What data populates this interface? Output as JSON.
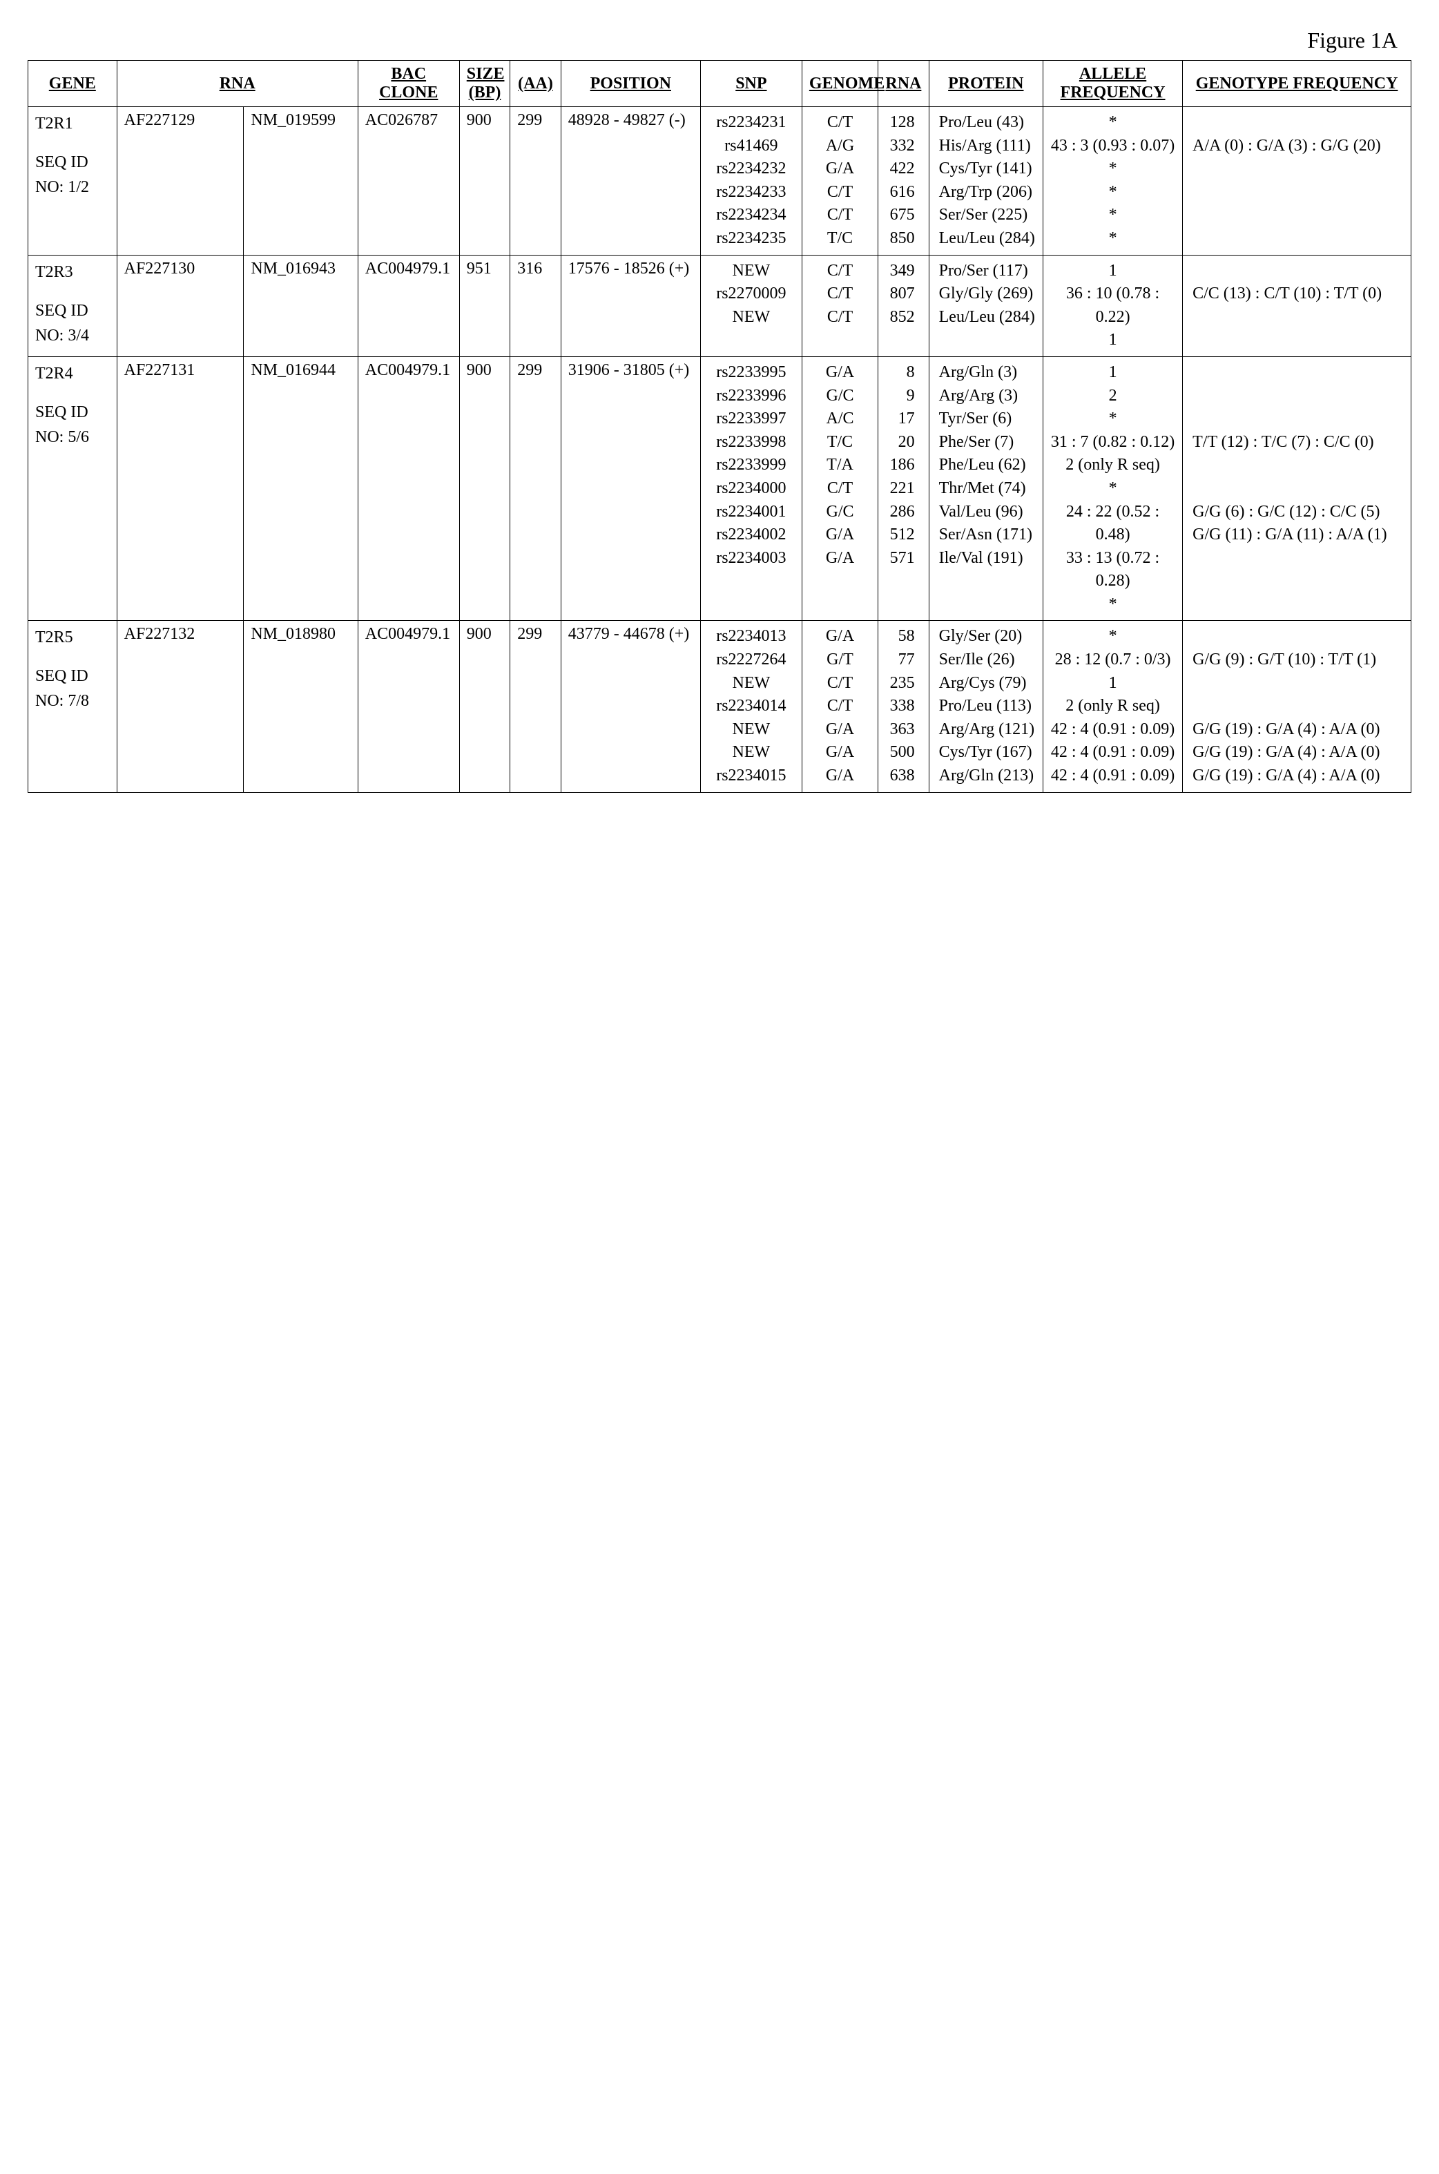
{
  "figure_label": "Figure 1A",
  "headers": {
    "gene": "GENE",
    "rna": "RNA",
    "bac_clone": "BAC CLONE",
    "size_bp": "SIZE (BP)",
    "aa": "(AA)",
    "position": "POSITION",
    "snp": "SNP",
    "genome": "GENOME",
    "rna_num": "RNA",
    "protein": "PROTEIN",
    "allele_freq": "ALLELE FREQUENCY",
    "genotype_freq": "GENOTYPE FREQUENCY"
  },
  "rows": [
    {
      "gene": "T2R1",
      "seq_id": "SEQ ID NO: 1/2",
      "rna1": "AF227129",
      "rna2": "NM_019599",
      "bac": "AC026787",
      "size_bp": "900",
      "aa": "299",
      "position": "48928 - 49827 (-)",
      "snps": [
        {
          "snp": "rs2234231",
          "genome": "C/T",
          "rna": "128",
          "protein": "Pro/Leu (43)",
          "allele": "*",
          "genotype": ""
        },
        {
          "snp": "rs41469",
          "genome": "A/G",
          "rna": "332",
          "protein": "His/Arg (111)",
          "allele": "43 : 3 (0.93 : 0.07)",
          "genotype": "A/A (0) : G/A (3) : G/G (20)"
        },
        {
          "snp": "rs2234232",
          "genome": "G/A",
          "rna": "422",
          "protein": "Cys/Tyr (141)",
          "allele": "*",
          "genotype": ""
        },
        {
          "snp": "rs2234233",
          "genome": "C/T",
          "rna": "616",
          "protein": "Arg/Trp (206)",
          "allele": "*",
          "genotype": ""
        },
        {
          "snp": "rs2234234",
          "genome": "C/T",
          "rna": "675",
          "protein": "Ser/Ser (225)",
          "allele": "*",
          "genotype": ""
        },
        {
          "snp": "rs2234235",
          "genome": "T/C",
          "rna": "850",
          "protein": "Leu/Leu (284)",
          "allele": "*",
          "genotype": ""
        }
      ]
    },
    {
      "gene": "T2R3",
      "seq_id": "SEQ ID NO: 3/4",
      "rna1": "AF227130",
      "rna2": "NM_016943",
      "bac": "AC004979.1",
      "size_bp": "951",
      "aa": "316",
      "position": "17576 - 18526 (+)",
      "snps": [
        {
          "snp": "NEW",
          "genome": "C/T",
          "rna": "349",
          "protein": "Pro/Ser (117)",
          "allele": "1",
          "genotype": ""
        },
        {
          "snp": "rs2270009",
          "genome": "C/T",
          "rna": "807",
          "protein": "Gly/Gly (269)",
          "allele": "36 : 10 (0.78 : 0.22)",
          "genotype": "C/C (13) : C/T (10) : T/T (0)"
        },
        {
          "snp": "NEW",
          "genome": "C/T",
          "rna": "852",
          "protein": "Leu/Leu (284)",
          "allele": "1",
          "genotype": ""
        }
      ]
    },
    {
      "gene": "T2R4",
      "seq_id": "SEQ ID NO: 5/6",
      "rna1": "AF227131",
      "rna2": "NM_016944",
      "bac": "AC004979.1",
      "size_bp": "900",
      "aa": "299",
      "position": "31906 - 31805 (+)",
      "snps": [
        {
          "snp": "rs2233995",
          "genome": "G/A",
          "rna": "8",
          "protein": "Arg/Gln (3)",
          "allele": "1",
          "genotype": ""
        },
        {
          "snp": "rs2233996",
          "genome": "G/C",
          "rna": "9",
          "protein": "Arg/Arg (3)",
          "allele": "2",
          "genotype": ""
        },
        {
          "snp": "rs2233997",
          "genome": "A/C",
          "rna": "17",
          "protein": "Tyr/Ser (6)",
          "allele": "*",
          "genotype": ""
        },
        {
          "snp": "rs2233998",
          "genome": "T/C",
          "rna": "20",
          "protein": "Phe/Ser (7)",
          "allele": "31 : 7 (0.82 : 0.12)",
          "genotype": "T/T (12) : T/C (7) : C/C (0)"
        },
        {
          "snp": "rs2233999",
          "genome": "T/A",
          "rna": "186",
          "protein": "Phe/Leu (62)",
          "allele": "2 (only R seq)",
          "genotype": ""
        },
        {
          "snp": "rs2234000",
          "genome": "C/T",
          "rna": "221",
          "protein": "Thr/Met (74)",
          "allele": "*",
          "genotype": ""
        },
        {
          "snp": "rs2234001",
          "genome": "G/C",
          "rna": "286",
          "protein": "Val/Leu (96)",
          "allele": "24 : 22 (0.52 : 0.48)",
          "genotype": "G/G (6) : G/C (12) : C/C (5)"
        },
        {
          "snp": "rs2234002",
          "genome": "G/A",
          "rna": "512",
          "protein": "Ser/Asn (171)",
          "allele": "33 : 13 (0.72 : 0.28)",
          "genotype": "G/G (11) : G/A (11) : A/A (1)"
        },
        {
          "snp": "rs2234003",
          "genome": "G/A",
          "rna": "571",
          "protein": "Ile/Val (191)",
          "allele": "*",
          "genotype": ""
        }
      ]
    },
    {
      "gene": "T2R5",
      "seq_id": "SEQ ID NO: 7/8",
      "rna1": "AF227132",
      "rna2": "NM_018980",
      "bac": "AC004979.1",
      "size_bp": "900",
      "aa": "299",
      "position": "43779 - 44678 (+)",
      "snps": [
        {
          "snp": "rs2234013",
          "genome": "G/A",
          "rna": "58",
          "protein": "Gly/Ser (20)",
          "allele": "*",
          "genotype": ""
        },
        {
          "snp": "rs2227264",
          "genome": "G/T",
          "rna": "77",
          "protein": "Ser/Ile (26)",
          "allele": "28 : 12 (0.7 : 0/3)",
          "genotype": "G/G (9) : G/T (10) : T/T (1)"
        },
        {
          "snp": "NEW",
          "genome": "C/T",
          "rna": "235",
          "protein": "Arg/Cys (79)",
          "allele": "1",
          "genotype": ""
        },
        {
          "snp": "rs2234014",
          "genome": "C/T",
          "rna": "338",
          "protein": "Pro/Leu (113)",
          "allele": "2 (only R seq)",
          "genotype": ""
        },
        {
          "snp": "NEW",
          "genome": "G/A",
          "rna": "363",
          "protein": "Arg/Arg (121)",
          "allele": "42 : 4 (0.91 : 0.09)",
          "genotype": "G/G (19) : G/A (4) : A/A (0)"
        },
        {
          "snp": "NEW",
          "genome": "G/A",
          "rna": "500",
          "protein": "Cys/Tyr (167)",
          "allele": "42 : 4 (0.91 : 0.09)",
          "genotype": "G/G (19) : G/A (4) : A/A (0)"
        },
        {
          "snp": "rs2234015",
          "genome": "G/A",
          "rna": "638",
          "protein": "Arg/Gln (213)",
          "allele": "42 : 4 (0.91 : 0.09)",
          "genotype": "G/G (19) : G/A (4) : A/A (0)"
        }
      ]
    }
  ]
}
